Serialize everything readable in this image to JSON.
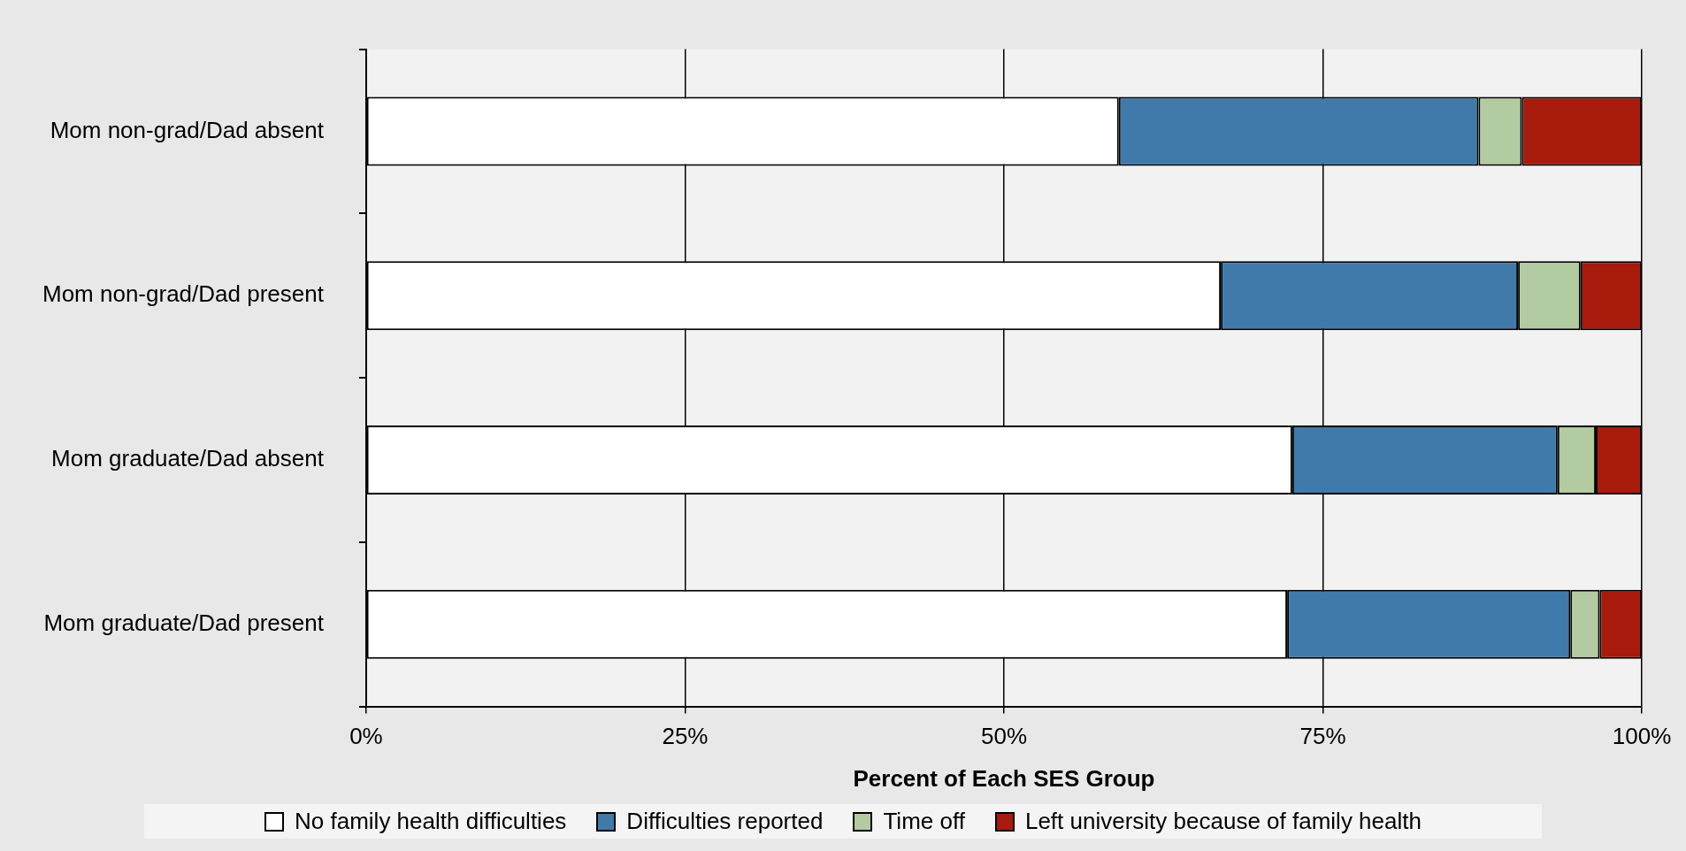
{
  "chart_data": {
    "type": "bar",
    "orientation": "horizontal",
    "stacked": true,
    "xlabel": "Percent of Each SES Group",
    "categories": [
      "Mom non-grad/Dad absent",
      "Mom non-grad/Dad present",
      "Mom graduate/Dad absent",
      "Mom graduate/Dad present"
    ],
    "series": [
      {
        "name": "No family health difficulties",
        "color": "#ffffff",
        "values": [
          59.0,
          67.0,
          72.6,
          72.2
        ]
      },
      {
        "name": "Difficulties reported",
        "color": "#3f7aab",
        "values": [
          28.2,
          23.3,
          20.8,
          22.2
        ]
      },
      {
        "name": "Time off",
        "color": "#b3cba0",
        "values": [
          3.4,
          4.9,
          3.0,
          2.3
        ]
      },
      {
        "name": "Left university because of family health",
        "color": "#a81a0b",
        "values": [
          9.4,
          4.8,
          3.6,
          3.3
        ]
      }
    ],
    "xlim": [
      0,
      100
    ],
    "xticks": [
      {
        "value": 0,
        "label": "0%"
      },
      {
        "value": 25,
        "label": "25%"
      },
      {
        "value": 50,
        "label": "50%"
      },
      {
        "value": 75,
        "label": "75%"
      },
      {
        "value": 100,
        "label": "100%"
      }
    ],
    "grid": "x",
    "legend": "bottom"
  }
}
